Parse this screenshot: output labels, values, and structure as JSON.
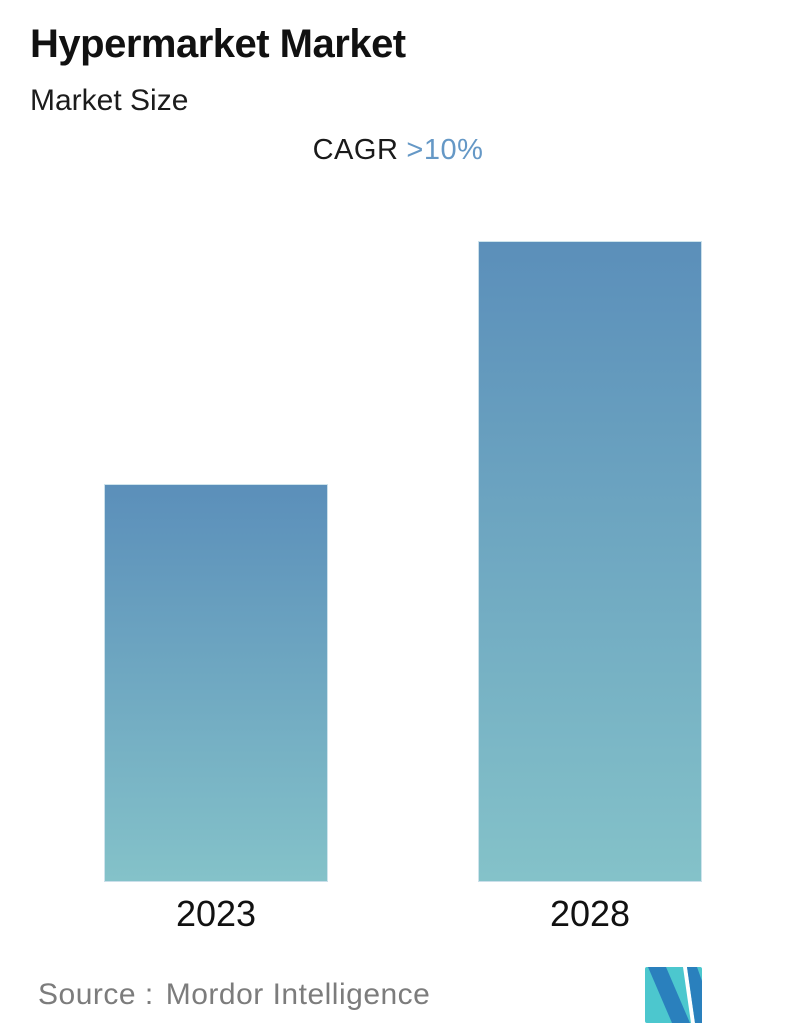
{
  "header": {
    "title": "Hypermarket Market",
    "subtitle": "Market Size"
  },
  "cagr": {
    "label": "CAGR",
    "value": ">10%"
  },
  "chart_data": {
    "type": "bar",
    "title": "Hypermarket Market",
    "subtitle": "Market Size",
    "categories": [
      "2023",
      "2028"
    ],
    "values": [
      1.0,
      1.61
    ],
    "value_scale": "relative - no numeric value axis is shown in the chart",
    "annotation": "CAGR >10%",
    "xlabel": "",
    "ylabel": "",
    "legend": "none",
    "gridlines": false,
    "y_axis_visible": false,
    "bar_gradient": {
      "top": "#5b8fba",
      "bottom": "#84c2c9"
    }
  },
  "footer": {
    "source_label": "Source :",
    "source_name": "Mordor Intelligence"
  },
  "colors": {
    "background": "#ffffff",
    "text_black": "#111111",
    "accent_blue": "#6598c6",
    "source_gray": "#7c7c7c",
    "bar_top": "#5b8fba",
    "bar_bottom": "#84c2c9",
    "logo_teal": "#4cc7ce",
    "logo_blue": "#2a80bd"
  }
}
